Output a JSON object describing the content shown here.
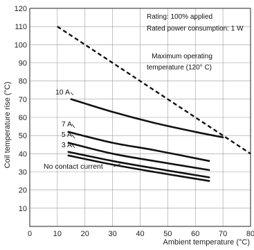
{
  "chart_data": {
    "type": "line",
    "title": "",
    "xlabel": "Ambient temperature (°C)",
    "ylabel": "Coil temperature rise (°C)",
    "xlim": [
      0,
      80
    ],
    "ylim": [
      0,
      120
    ],
    "xticks": [
      0,
      10,
      20,
      30,
      40,
      50,
      60,
      70,
      80
    ],
    "yticks": [
      10,
      20,
      30,
      40,
      50,
      60,
      70,
      80,
      90,
      100,
      110,
      120
    ],
    "grid": true,
    "series": [
      {
        "name": "10 A",
        "style": "solid",
        "x": [
          15,
          30,
          45,
          60,
          70
        ],
        "y": [
          70,
          63,
          57,
          52,
          49
        ]
      },
      {
        "name": "7 A",
        "style": "solid",
        "x": [
          14,
          30,
          45,
          65
        ],
        "y": [
          52,
          46,
          42,
          36
        ]
      },
      {
        "name": "5 A",
        "style": "solid",
        "x": [
          14,
          30,
          45,
          65
        ],
        "y": [
          46,
          40,
          36,
          31
        ]
      },
      {
        "name": "3 A",
        "style": "solid",
        "x": [
          14,
          30,
          45,
          65
        ],
        "y": [
          41,
          36,
          32,
          27
        ]
      },
      {
        "name": "No contact current",
        "style": "solid",
        "x": [
          14,
          30,
          45,
          65
        ],
        "y": [
          39,
          34,
          30,
          25
        ]
      },
      {
        "name": "Maximum operating temperature (120° C)",
        "style": "dashed",
        "x": [
          10,
          80
        ],
        "y": [
          110,
          40
        ]
      }
    ],
    "annotations": {
      "rating": "Rating: 100% applied",
      "rated_power": "Rated power consumption: 1 W",
      "max_temp_line1": "Maximum operating",
      "max_temp_line2": "temperature (120° C)"
    }
  }
}
